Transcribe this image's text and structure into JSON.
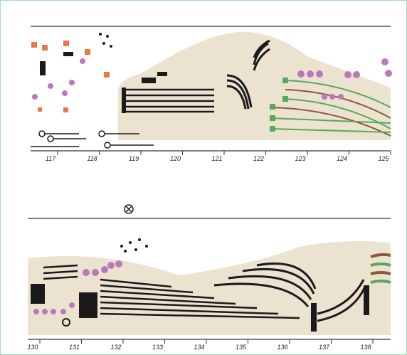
{
  "systems": [
    {
      "measures": [
        "117",
        "118",
        "119",
        "120",
        "121",
        "122",
        "123",
        "124",
        "125"
      ]
    },
    {
      "measures": [
        "130",
        "131",
        "132",
        "133",
        "134",
        "135",
        "136",
        "137",
        "138"
      ]
    }
  ]
}
